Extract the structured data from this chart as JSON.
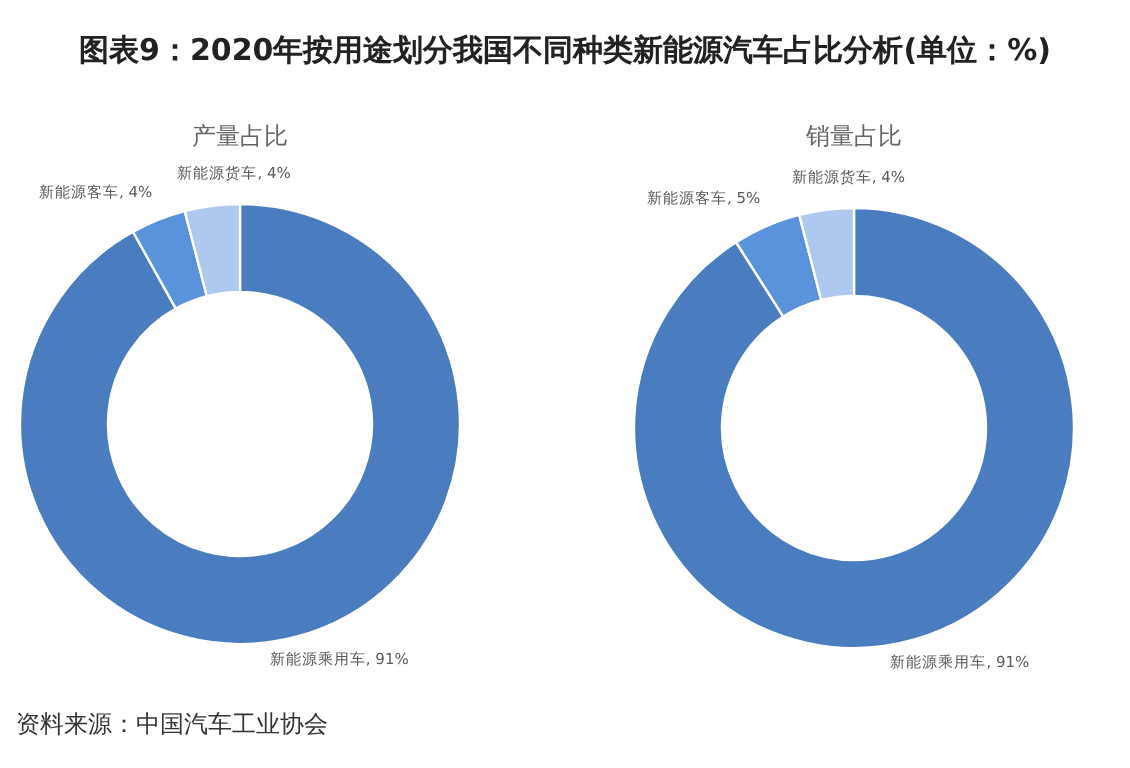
{
  "chart_data": [
    {
      "type": "donut",
      "title": "图表9：2020年按用途划分我国不同种类新能源汽车占比分析(单位：%)",
      "subtitle": "产量占比",
      "categories": [
        "新能源乘用车",
        "新能源客车",
        "新能源货车"
      ],
      "values": [
        91,
        4,
        4
      ],
      "value_labels": [
        "91%",
        "4%",
        "4%"
      ],
      "colors": [
        "#4a7cc0",
        "#5a92dc",
        "#aec8ee"
      ],
      "annotations": [
        "资料来源：中国汽车工业协会"
      ]
    },
    {
      "type": "donut",
      "subtitle": "销量占比",
      "categories": [
        "新能源乘用车",
        "新能源客车",
        "新能源货车"
      ],
      "values": [
        91,
        5,
        4
      ],
      "value_labels": [
        "91%",
        "5%",
        "4%"
      ],
      "colors": [
        "#4a7cc0",
        "#5a92dc",
        "#aec8ee"
      ]
    }
  ]
}
